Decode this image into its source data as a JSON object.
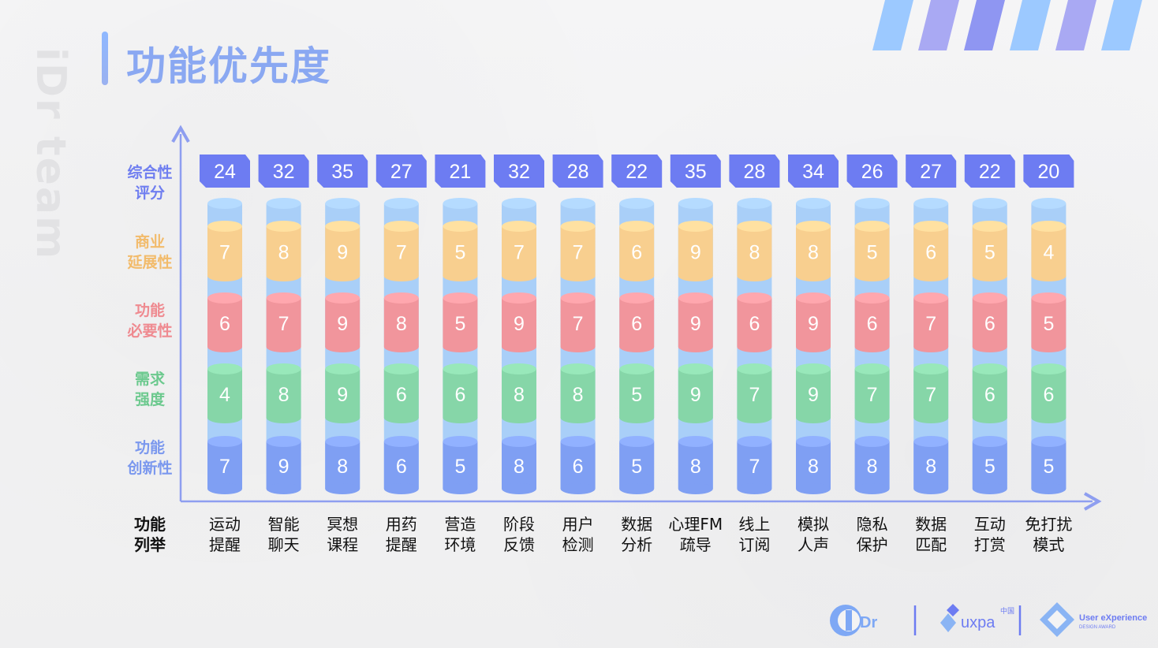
{
  "watermark": "iDr team",
  "page_title": "功能优先度",
  "colors": {
    "accent": "#8aa8f2",
    "score_box": "#6d7cf2",
    "commercial": "#f8cf8f",
    "necessity": "#f1959c",
    "demand": "#86d6a8",
    "innovation": "#7f9ff3",
    "tube": "#a9cff8"
  },
  "row_labels": {
    "score": [
      "综合性",
      "评分"
    ],
    "commercial": [
      "商业",
      "延展性"
    ],
    "necessity": [
      "功能",
      "必要性"
    ],
    "demand": [
      "需求",
      "强度"
    ],
    "innovation": [
      "功能",
      "创新性"
    ],
    "features": [
      "功能",
      "列举"
    ]
  },
  "chart_data": {
    "type": "table",
    "categories": [
      [
        "运动",
        "提醒"
      ],
      [
        "智能",
        "聊天"
      ],
      [
        "冥想",
        "课程"
      ],
      [
        "用药",
        "提醒"
      ],
      [
        "营造",
        "环境"
      ],
      [
        "阶段",
        "反馈"
      ],
      [
        "用户",
        "检测"
      ],
      [
        "数据",
        "分析"
      ],
      [
        "心理FM",
        "疏导"
      ],
      [
        "线上",
        "订阅"
      ],
      [
        "模拟",
        "人声"
      ],
      [
        "隐私",
        "保护"
      ],
      [
        "数据",
        "匹配"
      ],
      [
        "互动",
        "打赏"
      ],
      [
        "免打扰",
        "模式"
      ]
    ],
    "series": [
      {
        "name": "综合性评分",
        "values": [
          24,
          32,
          35,
          27,
          21,
          32,
          28,
          22,
          35,
          28,
          34,
          26,
          27,
          22,
          20
        ]
      },
      {
        "name": "商业延展性",
        "values": [
          7,
          8,
          9,
          7,
          5,
          7,
          7,
          6,
          9,
          8,
          8,
          5,
          6,
          5,
          4
        ]
      },
      {
        "name": "功能必要性",
        "values": [
          6,
          7,
          9,
          8,
          5,
          9,
          7,
          6,
          9,
          6,
          9,
          6,
          7,
          6,
          5
        ]
      },
      {
        "name": "需求强度",
        "values": [
          4,
          8,
          9,
          6,
          6,
          8,
          8,
          5,
          9,
          7,
          9,
          7,
          7,
          6,
          6
        ]
      },
      {
        "name": "功能创新性",
        "values": [
          7,
          9,
          8,
          6,
          5,
          8,
          6,
          5,
          8,
          7,
          8,
          8,
          8,
          5,
          5
        ]
      }
    ]
  },
  "logos": {
    "idr": "Dr",
    "uxpa": "uxpa",
    "uxpa_sub": "中国",
    "ued": "User eXperience",
    "ued_sub": "DESIGN AWARD"
  }
}
